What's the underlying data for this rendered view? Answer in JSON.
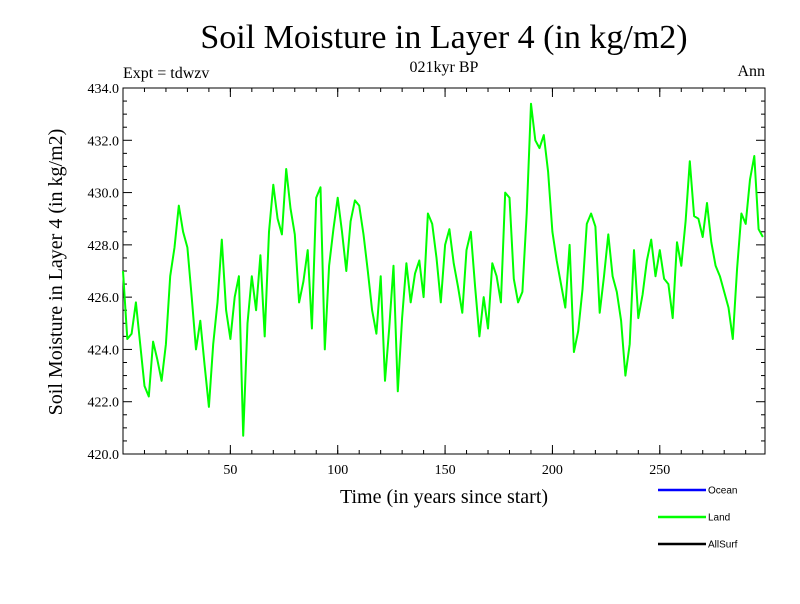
{
  "chart_data": {
    "type": "line",
    "title": "Soil Moisture in Layer 4 (in kg/m2)",
    "subtitle": "021kyr BP",
    "experiment_label": "Expt = tdwzv",
    "period_label": "Ann",
    "xlabel": "Time (in years since start)",
    "ylabel": "Soil Moisture in Layer 4 (in kg/m2)",
    "xlim": [
      0,
      299
    ],
    "ylim": [
      420.0,
      434.0
    ],
    "x_ticks": [
      50,
      100,
      150,
      200,
      250
    ],
    "y_ticks": [
      "420.0",
      "422.0",
      "424.0",
      "426.0",
      "428.0",
      "430.0",
      "432.0",
      "434.0"
    ],
    "grid": false,
    "legend_position": "bottom-right",
    "series": [
      {
        "name": "Ocean",
        "color": "#0000ff",
        "values": []
      },
      {
        "name": "Land",
        "color": "#00ff00",
        "x": [
          0,
          2,
          4,
          6,
          8,
          10,
          12,
          14,
          16,
          18,
          20,
          22,
          24,
          26,
          28,
          30,
          32,
          34,
          36,
          38,
          40,
          42,
          44,
          46,
          48,
          50,
          52,
          54,
          56,
          58,
          60,
          62,
          64,
          66,
          68,
          70,
          72,
          74,
          76,
          78,
          80,
          82,
          84,
          86,
          88,
          90,
          92,
          94,
          96,
          98,
          100,
          102,
          104,
          106,
          108,
          110,
          112,
          114,
          116,
          118,
          120,
          122,
          124,
          126,
          128,
          130,
          132,
          134,
          136,
          138,
          140,
          142,
          144,
          146,
          148,
          150,
          152,
          154,
          156,
          158,
          160,
          162,
          164,
          166,
          168,
          170,
          172,
          174,
          176,
          178,
          180,
          182,
          184,
          186,
          188,
          190,
          192,
          194,
          196,
          198,
          200,
          202,
          204,
          206,
          208,
          210,
          212,
          214,
          216,
          218,
          220,
          222,
          224,
          226,
          228,
          230,
          232,
          234,
          236,
          238,
          240,
          242,
          244,
          246,
          248,
          250,
          252,
          254,
          256,
          258,
          260,
          262,
          264,
          266,
          268,
          270,
          272,
          274,
          276,
          278,
          280,
          282,
          284,
          286,
          288,
          290,
          292,
          294,
          296,
          298
        ],
        "values": [
          427.0,
          424.4,
          424.6,
          425.8,
          424.2,
          422.6,
          422.2,
          424.3,
          423.6,
          422.8,
          424.2,
          426.8,
          427.9,
          429.5,
          428.5,
          427.9,
          426.0,
          424.0,
          425.1,
          423.4,
          421.8,
          424.2,
          425.8,
          428.2,
          425.5,
          424.4,
          426.0,
          426.8,
          420.7,
          425.0,
          426.8,
          425.5,
          427.6,
          424.5,
          428.5,
          430.3,
          429.0,
          428.4,
          430.9,
          429.4,
          428.4,
          425.8,
          426.6,
          427.8,
          424.8,
          429.8,
          430.2,
          424.0,
          427.2,
          428.6,
          429.8,
          428.5,
          427.0,
          428.9,
          429.7,
          429.5,
          428.4,
          427.0,
          425.5,
          424.6,
          426.8,
          422.8,
          424.8,
          427.2,
          422.4,
          425.2,
          427.3,
          425.8,
          426.9,
          427.4,
          426.0,
          429.2,
          428.8,
          427.5,
          425.8,
          428.0,
          428.6,
          427.3,
          426.4,
          425.4,
          427.8,
          428.5,
          426.4,
          424.5,
          426.0,
          424.8,
          427.3,
          426.8,
          425.8,
          430.0,
          429.8,
          426.7,
          425.8,
          426.2,
          429.2,
          433.4,
          432.0,
          431.7,
          432.2,
          430.8,
          428.5,
          427.4,
          426.5,
          425.6,
          428.0,
          423.9,
          424.7,
          426.3,
          428.8,
          429.2,
          428.7,
          425.4,
          426.8,
          428.4,
          426.8,
          426.2,
          425.1,
          423.0,
          424.2,
          427.8,
          425.2,
          426.1,
          427.4,
          428.2,
          426.8,
          427.8,
          426.7,
          426.5,
          425.2,
          428.1,
          427.2,
          428.9,
          431.2,
          429.1,
          429.0,
          428.3,
          429.6,
          428.1,
          427.2,
          426.8,
          426.2,
          425.6,
          424.4,
          427.1,
          429.2,
          428.8,
          430.5,
          431.4,
          428.6,
          428.3
        ]
      },
      {
        "name": "AllSurf",
        "color": "#000000",
        "values": []
      }
    ]
  }
}
